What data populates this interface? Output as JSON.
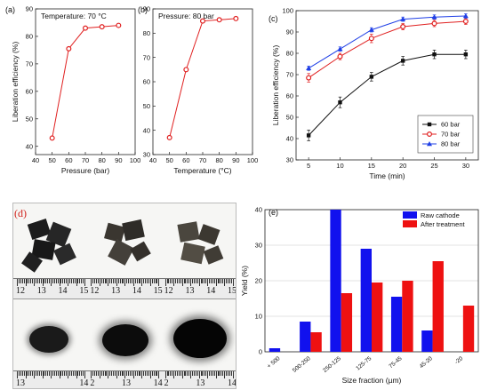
{
  "panel_labels": {
    "a": "(a)",
    "b": "(b)",
    "c": "(c)",
    "d": "(d)",
    "e": "(e)"
  },
  "photo": {
    "ruler_top": [
      [
        "12",
        "13",
        "14",
        "15"
      ],
      [
        "12",
        "13",
        "14",
        "15"
      ],
      [
        "12",
        "13",
        "14",
        "15"
      ]
    ],
    "ruler_bottom": [
      [
        "13",
        "14"
      ],
      [
        "2",
        "13",
        "14"
      ],
      [
        "2",
        "13",
        "14"
      ]
    ]
  },
  "colors": {
    "black": "#111111",
    "red": "#e02020",
    "blue": "#1f3fe6",
    "bar_blue": "#1111ee",
    "bar_red": "#ee1111"
  },
  "chart_data": [
    {
      "id": "a",
      "type": "line",
      "annotation": "Temperature: 70 °C",
      "xlabel": "Pressure (bar)",
      "ylabel": "Liberation efficiency (%)",
      "xlim": [
        40,
        100
      ],
      "ylim": [
        37,
        90
      ],
      "xticks": [
        40,
        50,
        60,
        70,
        80,
        90,
        100
      ],
      "yticks": [
        40,
        50,
        60,
        70,
        80,
        90
      ],
      "series": [
        {
          "x": [
            50,
            60,
            70,
            80,
            90
          ],
          "y": [
            43,
            75.5,
            83,
            83.5,
            84
          ],
          "color": "red",
          "marker": "circle"
        }
      ]
    },
    {
      "id": "b",
      "type": "line",
      "annotation": "Pressure: 80 bar",
      "xlabel": "Temperature (°C)",
      "ylabel": "",
      "xlim": [
        40,
        100
      ],
      "ylim": [
        30,
        90
      ],
      "xticks": [
        40,
        50,
        60,
        70,
        80,
        90,
        100
      ],
      "yticks": [
        30,
        40,
        50,
        60,
        70,
        80,
        90
      ],
      "series": [
        {
          "x": [
            50,
            60,
            70,
            80,
            90
          ],
          "y": [
            37,
            65,
            85,
            85.5,
            86
          ],
          "color": "red",
          "marker": "circle"
        }
      ]
    },
    {
      "id": "c",
      "type": "line",
      "xlabel": "Time (min)",
      "ylabel": "Liberation efficiency (%)",
      "xlim": [
        3,
        32
      ],
      "ylim": [
        30,
        100
      ],
      "xticks": [
        5,
        10,
        15,
        20,
        25,
        30
      ],
      "yticks": [
        30,
        40,
        50,
        60,
        70,
        80,
        90,
        100
      ],
      "legend_position": "lower-right",
      "series": [
        {
          "name": "60 bar",
          "x": [
            5,
            10,
            15,
            20,
            25,
            30
          ],
          "y": [
            41.5,
            57,
            69,
            76.5,
            79.5,
            79.5
          ],
          "err": [
            2.5,
            2.5,
            2,
            2,
            2,
            2
          ],
          "color": "black",
          "marker": "square"
        },
        {
          "name": "70 bar",
          "x": [
            5,
            10,
            15,
            20,
            25,
            30
          ],
          "y": [
            68.5,
            78.5,
            87,
            92.5,
            94,
            95
          ],
          "err": [
            2,
            1.5,
            2,
            1.5,
            1.5,
            1.5
          ],
          "color": "red",
          "marker": "circle"
        },
        {
          "name": "80 bar",
          "x": [
            5,
            10,
            15,
            20,
            25,
            30
          ],
          "y": [
            73,
            82,
            91,
            96,
            97,
            97.5
          ],
          "err": [
            1,
            1,
            1,
            1,
            1,
            1
          ],
          "color": "blue",
          "marker": "triangle"
        }
      ]
    },
    {
      "id": "e",
      "type": "bar",
      "xlabel": "Size fraction (µm)",
      "ylabel": "Yield (%)",
      "ylim": [
        0,
        40
      ],
      "yticks": [
        0,
        10,
        20,
        30,
        40
      ],
      "categories": [
        "+ 500",
        "500-250",
        "250-125",
        "125-75",
        "75-45",
        "45-20",
        "-20"
      ],
      "legend_position": "top-right",
      "series": [
        {
          "name": "Raw cathode",
          "values": [
            1,
            8.5,
            40,
            29,
            15.5,
            6,
            0
          ],
          "color": "bar_blue"
        },
        {
          "name": "After treatment",
          "values": [
            0,
            5.5,
            16.5,
            19.5,
            20,
            25.5,
            13
          ],
          "color": "bar_red"
        }
      ]
    }
  ]
}
